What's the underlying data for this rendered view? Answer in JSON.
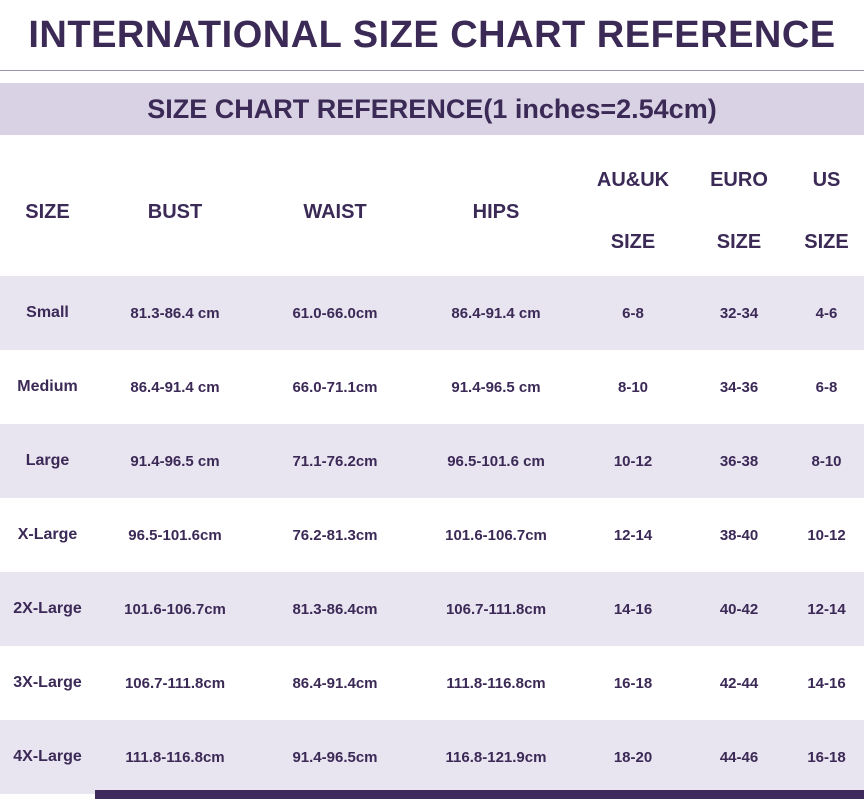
{
  "title": "INTERNATIONAL SIZE CHART REFERENCE",
  "subtitle": "SIZE CHART REFERENCE(1 inches=2.54cm)",
  "colors": {
    "text_purple": "#3b2956",
    "row_stripe_lavender": "#e8e4f0",
    "banner_lavender": "#d8d2e4",
    "bottom_bar_purple": "#3e2a5d"
  },
  "table": {
    "headers": [
      {
        "line1": "SIZE"
      },
      {
        "line1": "BUST"
      },
      {
        "line1": "WAIST"
      },
      {
        "line1": "HIPS"
      },
      {
        "line1": "AU&UK",
        "line2": "SIZE"
      },
      {
        "line1": "EURO",
        "line2": "SIZE"
      },
      {
        "line1": "US",
        "line2": "SIZE"
      }
    ],
    "rows": [
      {
        "size": "Small",
        "bust": "81.3-86.4 cm",
        "waist": "61.0-66.0cm",
        "hips": "86.4-91.4 cm",
        "auuk": "6-8",
        "euro": "32-34",
        "us": "4-6"
      },
      {
        "size": "Medium",
        "bust": "86.4-91.4 cm",
        "waist": "66.0-71.1cm",
        "hips": "91.4-96.5 cm",
        "auuk": "8-10",
        "euro": "34-36",
        "us": "6-8"
      },
      {
        "size": "Large",
        "bust": "91.4-96.5 cm",
        "waist": "71.1-76.2cm",
        "hips": "96.5-101.6 cm",
        "auuk": "10-12",
        "euro": "36-38",
        "us": "8-10"
      },
      {
        "size": "X-Large",
        "bust": "96.5-101.6cm",
        "waist": "76.2-81.3cm",
        "hips": "101.6-106.7cm",
        "auuk": "12-14",
        "euro": "38-40",
        "us": "10-12"
      },
      {
        "size": "2X-Large",
        "bust": "101.6-106.7cm",
        "waist": "81.3-86.4cm",
        "hips": "106.7-111.8cm",
        "auuk": "14-16",
        "euro": "40-42",
        "us": "12-14"
      },
      {
        "size": "3X-Large",
        "bust": "106.7-111.8cm",
        "waist": "86.4-91.4cm",
        "hips": "111.8-116.8cm",
        "auuk": "16-18",
        "euro": "42-44",
        "us": "14-16"
      },
      {
        "size": "4X-Large",
        "bust": "111.8-116.8cm",
        "waist": "91.4-96.5cm",
        "hips": "116.8-121.9cm",
        "auuk": "18-20",
        "euro": "44-46",
        "us": "16-18"
      }
    ]
  }
}
